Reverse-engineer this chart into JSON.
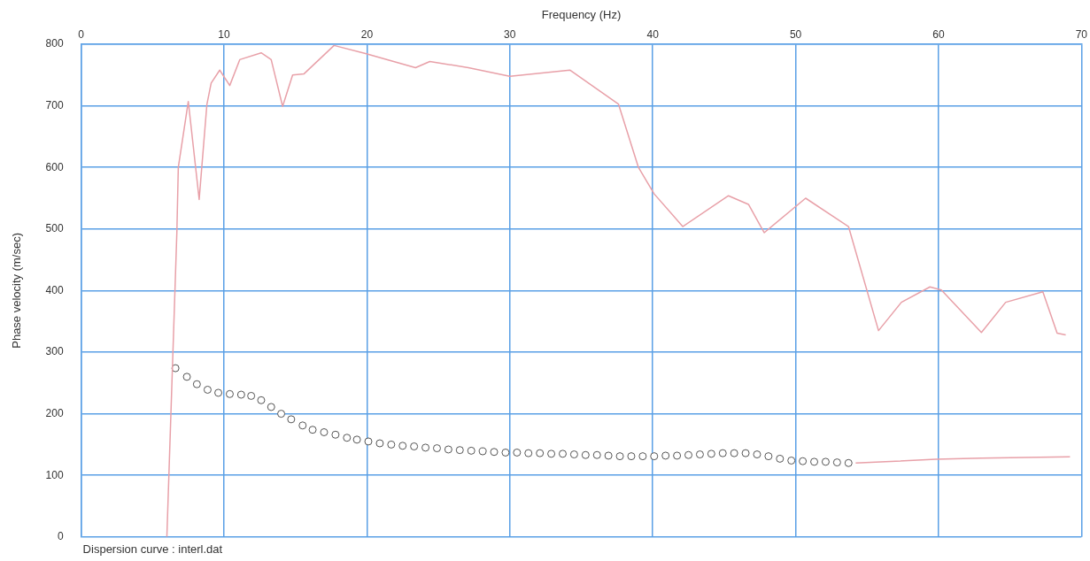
{
  "chart_data": {
    "type": "line",
    "xlabel": "Frequency (Hz)",
    "ylabel": "Phase velocity (m/sec)",
    "annotations": [
      "Dispersion curve : interl.dat"
    ],
    "xlim": [
      0,
      70
    ],
    "xticks": [
      0,
      10,
      20,
      30,
      40,
      50,
      60,
      70
    ],
    "ylim": [
      0,
      800
    ],
    "yticks": [
      0,
      100,
      200,
      300,
      400,
      500,
      600,
      700,
      800
    ],
    "grid": true,
    "legend": false,
    "series": [
      {
        "type": "line",
        "color": "#e8a0a8",
        "marker": "none",
        "x": [
          6.0,
          6.7,
          6.8,
          7.5,
          8.26,
          8.8,
          9.1,
          9.7,
          10.4,
          11.1,
          12.6,
          13.3,
          14.1,
          14.8,
          15.6,
          17.7,
          19.9,
          23.4,
          24.4,
          27.1,
          30.0,
          34.2,
          37.6,
          39.0,
          40.1,
          42.1,
          45.3,
          46.7,
          47.8,
          50.7,
          53.7,
          55.8,
          57.4,
          59.4,
          60.2,
          63.0,
          64.7,
          67.3,
          68.3,
          68.9
        ],
        "values": [
          0,
          495,
          600,
          707,
          548,
          702,
          737,
          758,
          733,
          775,
          786,
          775,
          699,
          750,
          752,
          798,
          785,
          762,
          772,
          762,
          748,
          758,
          703,
          600,
          557,
          504,
          554,
          540,
          494,
          550,
          504,
          335,
          381,
          406,
          401,
          332,
          381,
          398,
          331,
          328
        ]
      },
      {
        "type": "line",
        "color": "#e8a0a8",
        "marker": "none",
        "x": [
          54.2,
          57.0,
          59.8,
          63.0,
          66.0,
          69.2
        ],
        "values": [
          120,
          123,
          126,
          128,
          129,
          130
        ]
      },
      {
        "type": "scatter",
        "color": "#555555",
        "marker": "circle",
        "x": [
          6.6,
          7.4,
          8.1,
          8.85,
          9.6,
          10.4,
          11.2,
          11.9,
          12.6,
          13.3,
          14.0,
          14.7,
          15.5,
          16.2,
          17.0,
          17.8,
          18.6,
          19.3,
          20.1,
          20.9,
          21.7,
          22.5,
          23.3,
          24.1,
          24.9,
          25.7,
          26.5,
          27.3,
          28.1,
          28.9,
          29.7,
          30.5,
          31.3,
          32.1,
          32.9,
          33.7,
          34.5,
          35.3,
          36.1,
          36.9,
          37.7,
          38.5,
          39.3,
          40.1,
          40.9,
          41.7,
          42.5,
          43.3,
          44.1,
          44.9,
          45.7,
          46.5,
          47.3,
          48.1,
          48.9,
          49.7,
          50.5,
          51.3,
          52.1,
          52.9,
          53.7
        ],
        "values": [
          274,
          260,
          248,
          239,
          234,
          232,
          231,
          229,
          222,
          211,
          200,
          191,
          181,
          174,
          170,
          166,
          161,
          158,
          155,
          152,
          150,
          148,
          147,
          145,
          144,
          142,
          141,
          140,
          139,
          138,
          137,
          137,
          136,
          136,
          135,
          135,
          134,
          133,
          133,
          132,
          131,
          131,
          131,
          131,
          132,
          132,
          133,
          134,
          135,
          136,
          136,
          136,
          134,
          131,
          127,
          124,
          123,
          122,
          122,
          121,
          120
        ]
      }
    ]
  }
}
